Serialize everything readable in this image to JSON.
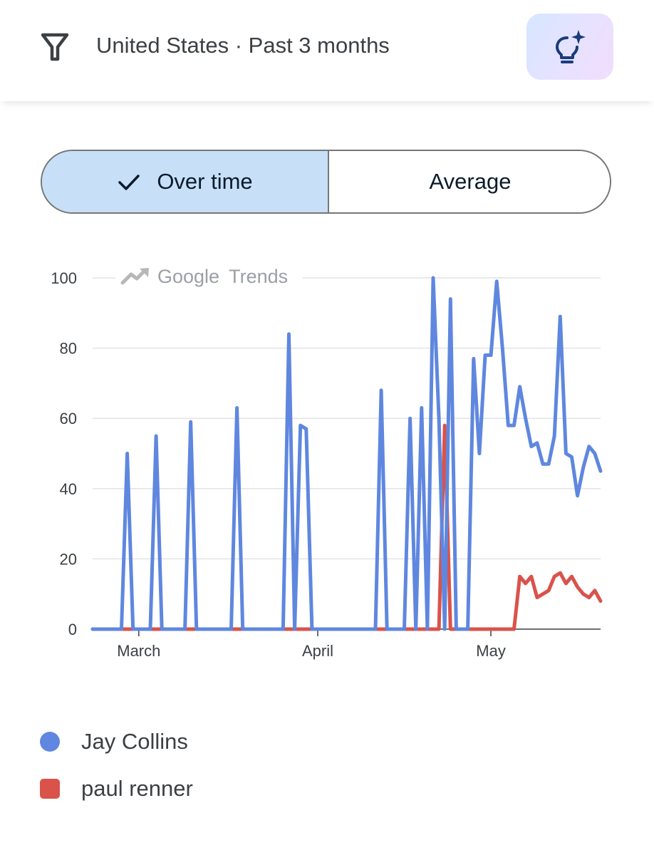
{
  "header": {
    "filter_text": "United States · Past 3 months",
    "insight_icon": "lightbulb-sparkle-icon"
  },
  "view_toggle": {
    "options": [
      {
        "label": "Over time",
        "selected": true
      },
      {
        "label": "Average",
        "selected": false
      }
    ]
  },
  "watermark": {
    "brand": "Google",
    "product": "Trends"
  },
  "colors": {
    "jay_collins": "#5f87df",
    "paul_renner": "#d9534a",
    "selected_segment": "#c7e0f8",
    "accent_dark": "#1a3c7a"
  },
  "chart_data": {
    "type": "line",
    "title": "",
    "xlabel": "",
    "ylabel": "",
    "ylim": [
      0,
      100
    ],
    "yticks": [
      "0",
      "20",
      "40",
      "60",
      "80",
      "100"
    ],
    "xticks": [
      {
        "label": "March",
        "index": 8
      },
      {
        "label": "April",
        "index": 39
      },
      {
        "label": "May",
        "index": 69
      }
    ],
    "grid": true,
    "legend_position": "bottom",
    "series": [
      {
        "name": "Jay Collins",
        "values": [
          0,
          0,
          0,
          0,
          0,
          0,
          50,
          0,
          0,
          0,
          0,
          55,
          0,
          0,
          0,
          0,
          0,
          59,
          0,
          0,
          0,
          0,
          0,
          0,
          0,
          63,
          0,
          0,
          0,
          0,
          0,
          0,
          0,
          0,
          84,
          0,
          58,
          57,
          0,
          0,
          0,
          0,
          0,
          0,
          0,
          0,
          0,
          0,
          0,
          0,
          68,
          0,
          0,
          0,
          0,
          60,
          0,
          63,
          0,
          100,
          60,
          0,
          94,
          0,
          0,
          0,
          77,
          50,
          78,
          78,
          99,
          80,
          58,
          58,
          69,
          60,
          52,
          53,
          47,
          47,
          55,
          89,
          50,
          49,
          38,
          46,
          52,
          50,
          45
        ]
      },
      {
        "name": "paul renner",
        "values": [
          0,
          0,
          0,
          0,
          0,
          0,
          0,
          0,
          0,
          0,
          0,
          0,
          0,
          0,
          0,
          0,
          0,
          0,
          0,
          0,
          0,
          0,
          0,
          0,
          0,
          0,
          0,
          0,
          0,
          0,
          0,
          0,
          0,
          0,
          0,
          0,
          0,
          0,
          0,
          0,
          0,
          0,
          0,
          0,
          0,
          0,
          0,
          0,
          0,
          0,
          0,
          0,
          0,
          0,
          0,
          0,
          0,
          0,
          0,
          0,
          0,
          58,
          0,
          0,
          0,
          0,
          0,
          0,
          0,
          0,
          0,
          0,
          0,
          0,
          15,
          13,
          15,
          9,
          10,
          11,
          15,
          16,
          13,
          15,
          12,
          10,
          9,
          11,
          8
        ]
      }
    ]
  }
}
